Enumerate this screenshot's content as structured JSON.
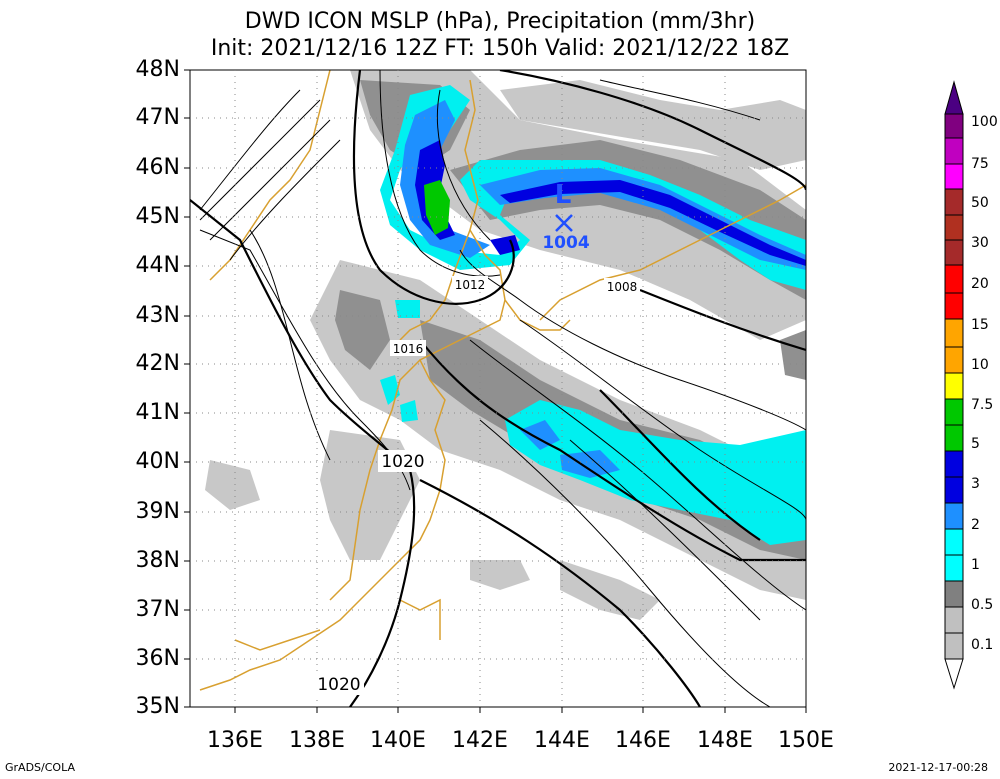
{
  "title": {
    "line1": "DWD ICON MSLP (hPa), Precipitation (mm/3hr)",
    "line2": "Init: 2021/12/16 12Z  FT: 150h  Valid: 2021/12/22 18Z"
  },
  "lat_labels": [
    "48N",
    "47N",
    "46N",
    "45N",
    "44N",
    "43N",
    "42N",
    "41N",
    "40N",
    "39N",
    "38N",
    "37N",
    "36N",
    "35N"
  ],
  "lon_labels": [
    "136E",
    "138E",
    "140E",
    "142E",
    "144E",
    "146E",
    "148E",
    "150E"
  ],
  "colorbar": {
    "labels": [
      "100",
      "75",
      "50",
      "30",
      "20",
      "15",
      "10",
      "7.5",
      "5",
      "3",
      "2",
      "1",
      "0.5",
      "0.1"
    ],
    "colors": [
      "#4b0082",
      "#800080",
      "#c000c0",
      "#ff00ff",
      "#a52a2a",
      "#ff0000",
      "#ffa500",
      "#ffff00",
      "#00c800",
      "#0000e0",
      "#1e90ff",
      "#00ffff",
      "#808080",
      "#c0c0c0",
      "#ffffff"
    ]
  },
  "isobar_labels": [
    "1012",
    "1008",
    "1016",
    "1020",
    "1020"
  ],
  "low": {
    "symbol": "L",
    "value": "1004"
  },
  "footer": {
    "left": "GrADS/COLA",
    "right": "2021-12-17-00:28"
  }
}
